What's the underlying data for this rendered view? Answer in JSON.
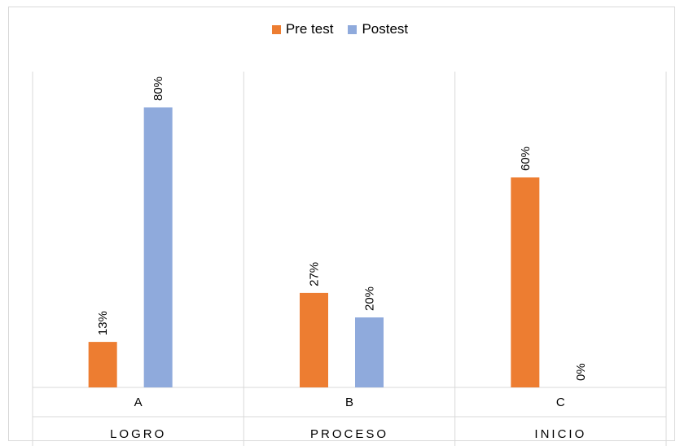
{
  "chart_data": {
    "type": "bar",
    "title": "",
    "xlabel": "",
    "ylabel": "",
    "ylim": [
      0,
      100
    ],
    "grid": false,
    "legend_position": "top",
    "categories": [
      "A",
      "B",
      "C"
    ],
    "group_labels": [
      "LOGRO",
      "PROCESO",
      "INICIO"
    ],
    "series": [
      {
        "name": "Pre test",
        "color": "#ED7D31",
        "values": [
          13,
          27,
          60
        ],
        "labels": [
          "13%",
          "27%",
          "60%"
        ]
      },
      {
        "name": "Postest",
        "color": "#8FAADC",
        "values": [
          80,
          20,
          0
        ],
        "labels": [
          "80%",
          "20%",
          "0%"
        ]
      }
    ]
  }
}
